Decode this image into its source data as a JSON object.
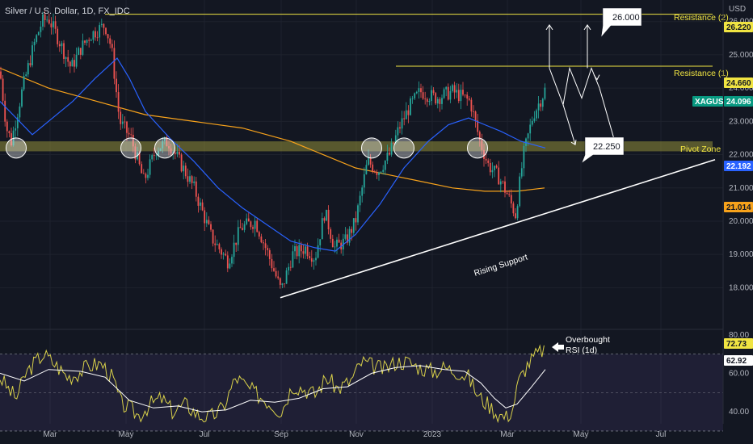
{
  "title": "Silver / U.S. Dollar, 1D, FX_IDC",
  "currency": "USD",
  "colors": {
    "background": "#131722",
    "up": "#26a69a",
    "down": "#ef5350",
    "resistance": "#f0e442",
    "pivot_zone": "#9e9a3a",
    "ma_fast": "#2962ff",
    "ma_slow": "#f7a21b",
    "rsi_line": "#d8d04a",
    "rsi_ma": "#ffffff",
    "price_tag": "#089981"
  },
  "annotations": {
    "resistance2": "Resistance (2)",
    "resistance1": "Resistance (1)",
    "pivot_zone": "Pivot Zone",
    "rising_support": "Rising Support",
    "target_high": "26.000",
    "target_low": "22.250",
    "overbought": "Overbought",
    "rsi_label": "RSI (1d)"
  },
  "price_tags": {
    "resistance2": "26.220",
    "resistance1": "24.660",
    "symbol": "XAGUSD",
    "last": "24.096",
    "pivot": "22.192",
    "ma_slow": "21.014",
    "rsi": "72.73",
    "rsi_ma": "62.92"
  },
  "chart_data": {
    "type": "candlestick",
    "x_labels": [
      "Mar",
      "May",
      "Jul",
      "Sep",
      "Nov",
      "2023",
      "Mar",
      "May",
      "Jul"
    ],
    "y_ticks": [
      "26.000",
      "25.000",
      "24.000",
      "23.000",
      "22.000",
      "21.000",
      "20.000",
      "19.000",
      "18.000"
    ],
    "ylim": [
      17.5,
      26.6
    ],
    "rsi_ticks": [
      "80.00",
      "60.00",
      "40.00"
    ],
    "rsi_ylim": [
      35,
      82
    ],
    "levels": {
      "resistance2": 26.22,
      "resistance1": 24.66,
      "pivot_zone": [
        22.1,
        22.4
      ]
    },
    "price_path": [
      [
        0,
        24.5
      ],
      [
        8,
        22.8
      ],
      [
        14,
        22.4
      ],
      [
        28,
        24.0
      ],
      [
        42,
        25.3
      ],
      [
        52,
        26.0
      ],
      [
        60,
        26.1
      ],
      [
        70,
        25.6
      ],
      [
        88,
        24.6
      ],
      [
        100,
        25.2
      ],
      [
        112,
        25.6
      ],
      [
        130,
        25.9
      ],
      [
        138,
        25.2
      ],
      [
        148,
        23.0
      ],
      [
        162,
        22.5
      ],
      [
        178,
        21.2
      ],
      [
        194,
        22.2
      ],
      [
        208,
        22.4
      ],
      [
        222,
        21.8
      ],
      [
        240,
        21.0
      ],
      [
        262,
        19.5
      ],
      [
        282,
        18.8
      ],
      [
        298,
        19.8
      ],
      [
        316,
        20.0
      ],
      [
        332,
        19.0
      ],
      [
        348,
        17.9
      ],
      [
        362,
        19.0
      ],
      [
        378,
        19.2
      ],
      [
        390,
        18.9
      ],
      [
        402,
        20.3
      ],
      [
        414,
        19.2
      ],
      [
        428,
        19.4
      ],
      [
        440,
        20.0
      ],
      [
        455,
        21.8
      ],
      [
        468,
        21.5
      ],
      [
        482,
        22.0
      ],
      [
        494,
        22.8
      ],
      [
        506,
        23.4
      ],
      [
        520,
        23.9
      ],
      [
        540,
        23.7
      ],
      [
        560,
        23.9
      ],
      [
        582,
        23.6
      ],
      [
        594,
        22.4
      ],
      [
        604,
        21.7
      ],
      [
        618,
        21.3
      ],
      [
        628,
        20.8
      ],
      [
        638,
        20.2
      ],
      [
        648,
        22.0
      ],
      [
        660,
        23.2
      ],
      [
        672,
        23.8
      ],
      [
        677,
        24.1
      ]
    ],
    "ma_fast_path": [
      [
        0,
        23.6
      ],
      [
        40,
        22.6
      ],
      [
        90,
        23.6
      ],
      [
        118,
        24.3
      ],
      [
        145,
        24.9
      ],
      [
        160,
        24.3
      ],
      [
        180,
        23.3
      ],
      [
        210,
        22.5
      ],
      [
        240,
        21.8
      ],
      [
        270,
        21.0
      ],
      [
        300,
        20.4
      ],
      [
        330,
        19.9
      ],
      [
        360,
        19.4
      ],
      [
        390,
        19.2
      ],
      [
        415,
        19.1
      ],
      [
        440,
        19.6
      ],
      [
        470,
        20.5
      ],
      [
        500,
        21.6
      ],
      [
        530,
        22.4
      ],
      [
        555,
        22.9
      ],
      [
        580,
        23.1
      ],
      [
        600,
        22.9
      ],
      [
        620,
        22.7
      ],
      [
        645,
        22.4
      ],
      [
        675,
        22.2
      ]
    ],
    "ma_slow_path": [
      [
        0,
        24.6
      ],
      [
        60,
        24.0
      ],
      [
        120,
        23.6
      ],
      [
        180,
        23.2
      ],
      [
        240,
        23.0
      ],
      [
        300,
        22.8
      ],
      [
        360,
        22.4
      ],
      [
        400,
        22.0
      ],
      [
        440,
        21.6
      ],
      [
        480,
        21.4
      ],
      [
        520,
        21.2
      ],
      [
        560,
        21.0
      ],
      [
        600,
        20.9
      ],
      [
        640,
        20.9
      ],
      [
        674,
        21.0
      ]
    ],
    "rsi_path": [
      [
        0,
        58
      ],
      [
        10,
        52
      ],
      [
        20,
        47
      ],
      [
        32,
        60
      ],
      [
        44,
        66
      ],
      [
        54,
        70
      ],
      [
        70,
        64
      ],
      [
        84,
        58
      ],
      [
        96,
        60
      ],
      [
        110,
        64
      ],
      [
        126,
        65
      ],
      [
        140,
        57
      ],
      [
        150,
        44
      ],
      [
        160,
        42
      ],
      [
        172,
        38
      ],
      [
        186,
        44
      ],
      [
        200,
        47
      ],
      [
        214,
        40
      ],
      [
        230,
        44
      ],
      [
        246,
        38
      ],
      [
        260,
        37
      ],
      [
        276,
        42
      ],
      [
        292,
        58
      ],
      [
        308,
        52
      ],
      [
        322,
        48
      ],
      [
        336,
        44
      ],
      [
        348,
        40
      ],
      [
        362,
        54
      ],
      [
        376,
        52
      ],
      [
        390,
        49
      ],
      [
        404,
        58
      ],
      [
        418,
        52
      ],
      [
        434,
        56
      ],
      [
        448,
        66
      ],
      [
        460,
        64
      ],
      [
        476,
        62
      ],
      [
        490,
        66
      ],
      [
        504,
        66
      ],
      [
        520,
        63
      ],
      [
        536,
        61
      ],
      [
        550,
        63
      ],
      [
        566,
        61
      ],
      [
        580,
        58
      ],
      [
        592,
        48
      ],
      [
        604,
        44
      ],
      [
        616,
        39
      ],
      [
        626,
        37
      ],
      [
        634,
        41
      ],
      [
        642,
        56
      ],
      [
        652,
        64
      ],
      [
        662,
        69
      ],
      [
        674,
        73
      ]
    ],
    "rsi_ma_path": [
      [
        0,
        60
      ],
      [
        30,
        56
      ],
      [
        60,
        62
      ],
      [
        100,
        61
      ],
      [
        130,
        58
      ],
      [
        160,
        46
      ],
      [
        190,
        42
      ],
      [
        220,
        43
      ],
      [
        250,
        40
      ],
      [
        280,
        41
      ],
      [
        310,
        46
      ],
      [
        340,
        45
      ],
      [
        370,
        47
      ],
      [
        400,
        52
      ],
      [
        430,
        53
      ],
      [
        460,
        60
      ],
      [
        490,
        63
      ],
      [
        520,
        64
      ],
      [
        550,
        62
      ],
      [
        575,
        61
      ],
      [
        595,
        55
      ],
      [
        612,
        47
      ],
      [
        626,
        42
      ],
      [
        640,
        44
      ],
      [
        656,
        52
      ],
      [
        675,
        62
      ]
    ],
    "circles": [
      [
        20,
        22.2
      ],
      [
        162,
        22.2
      ],
      [
        204,
        22.2
      ],
      [
        460,
        22.2
      ],
      [
        500,
        22.2
      ],
      [
        591,
        22.2
      ]
    ],
    "projection_path": [
      [
        680,
        24.6
      ],
      [
        697,
        23.5
      ],
      [
        705,
        24.6
      ],
      [
        720,
        23.7
      ],
      [
        732,
        24.6
      ],
      [
        742,
        24.0
      ]
    ],
    "support_line": [
      [
        347,
        17.7
      ],
      [
        885,
        21.85
      ]
    ],
    "arrow_up": [
      [
        680,
        24.6
      ],
      [
        680,
        25.9
      ]
    ],
    "arrow_up2": [
      [
        727,
        24.6
      ],
      [
        727,
        25.9
      ]
    ]
  }
}
